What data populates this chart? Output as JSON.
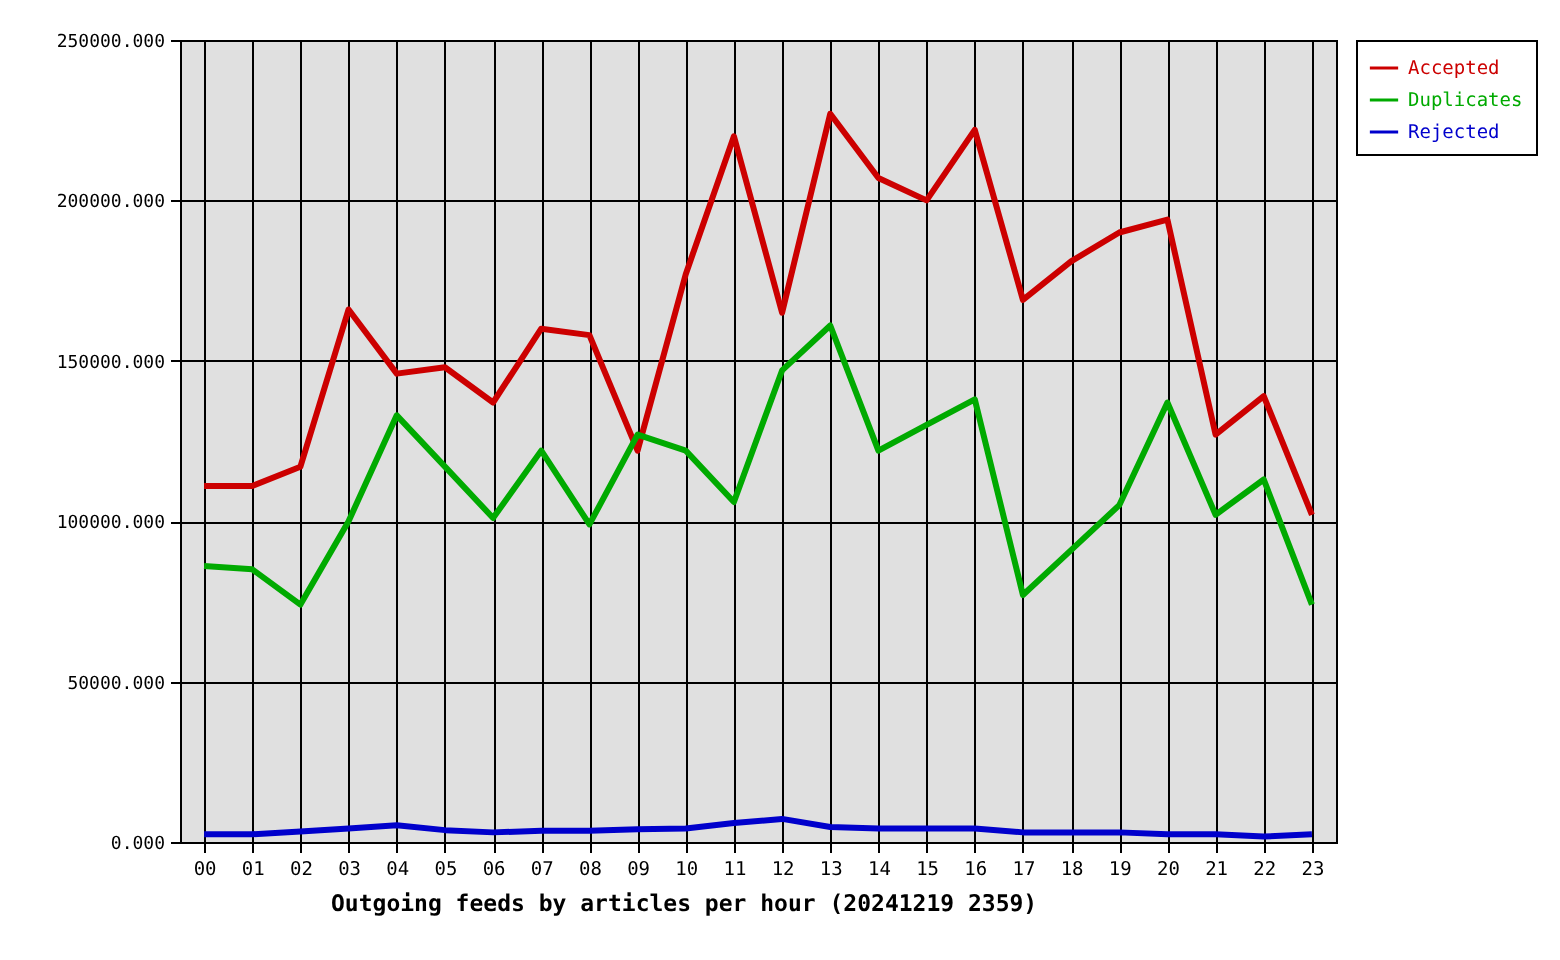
{
  "chart_data": {
    "type": "line",
    "xlabel": "Outgoing feeds by articles per hour (20241219 2359)",
    "categories": [
      "00",
      "01",
      "02",
      "03",
      "04",
      "05",
      "06",
      "07",
      "08",
      "09",
      "10",
      "11",
      "12",
      "13",
      "14",
      "15",
      "16",
      "17",
      "18",
      "19",
      "20",
      "21",
      "22",
      "23"
    ],
    "ylim": [
      0,
      250000
    ],
    "yticks": [
      {
        "value": 0,
        "label": "0.000"
      },
      {
        "value": 50000,
        "label": "50000.000"
      },
      {
        "value": 100000,
        "label": "100000.000"
      },
      {
        "value": 150000,
        "label": "150000.000"
      },
      {
        "value": 200000,
        "label": "200000.000"
      },
      {
        "value": 250000,
        "label": "250000.000"
      }
    ],
    "grid": true,
    "legend": "top right",
    "line_style": "solid",
    "series": [
      {
        "name": "Accepted",
        "color": "#cc0000",
        "values": [
          111000,
          111000,
          117000,
          166000,
          146000,
          148000,
          137000,
          160000,
          158000,
          122000,
          177000,
          220000,
          165000,
          227000,
          207000,
          200000,
          222000,
          169000,
          181000,
          190000,
          194000,
          127000,
          139000,
          102000
        ]
      },
      {
        "name": "Duplicates",
        "color": "#00aa00",
        "values": [
          86000,
          85000,
          74000,
          100000,
          133000,
          117000,
          101000,
          122000,
          99000,
          127000,
          122000,
          106000,
          147000,
          161000,
          122000,
          130000,
          138000,
          77000,
          91000,
          105000,
          137000,
          102000,
          113000,
          74000
        ]
      },
      {
        "name": "Rejected",
        "color": "#0000cc",
        "values": [
          2400,
          2400,
          3300,
          4200,
          5200,
          3700,
          3000,
          3500,
          3500,
          4000,
          4200,
          5900,
          7200,
          4700,
          4200,
          4200,
          4200,
          3000,
          3000,
          3000,
          2400,
          2400,
          1700,
          2400
        ]
      }
    ]
  }
}
